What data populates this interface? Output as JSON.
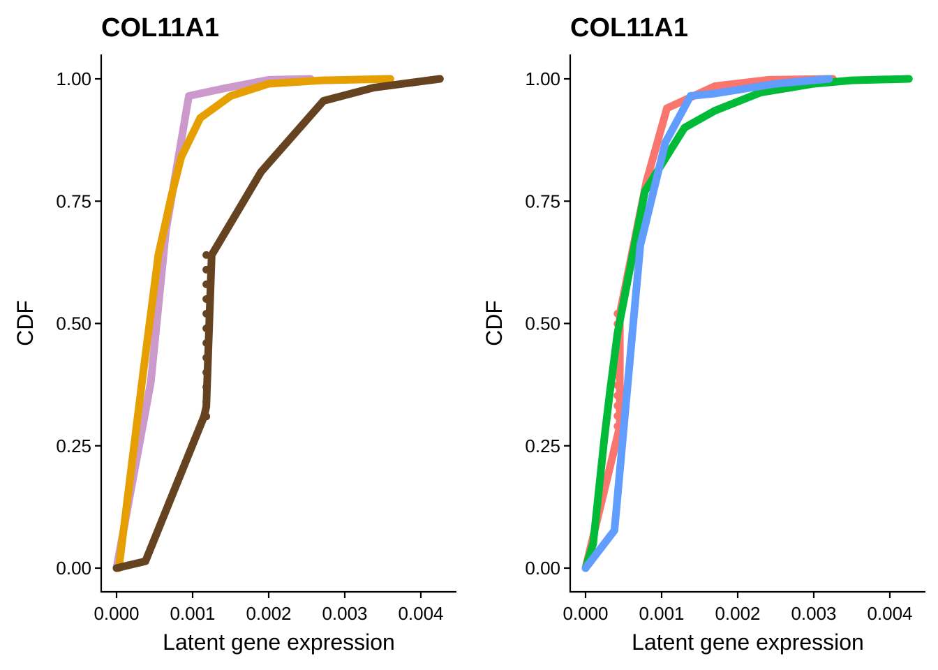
{
  "chart_data": [
    {
      "type": "line",
      "title": "COL11A1",
      "xlabel": "Latent gene expression",
      "ylabel": "CDF",
      "xlim": [
        0,
        0.0043
      ],
      "ylim": [
        0,
        1
      ],
      "xticks": [
        0,
        0.001,
        0.002,
        0.003,
        0.004
      ],
      "xtick_labels": [
        "0.000",
        "0.001",
        "0.002",
        "0.003",
        "0.004"
      ],
      "yticks": [
        0,
        0.25,
        0.5,
        0.75,
        1
      ],
      "ytick_labels": [
        "0.00",
        "0.25",
        "0.50",
        "0.75",
        "1.00"
      ],
      "grid": false,
      "legend": "none",
      "series": [
        {
          "name": "series-lilac",
          "color": "#cc99cc",
          "x": [
            0,
            0.00045,
            0.00065,
            0.00095,
            0.0014,
            0.002,
            0.00255
          ],
          "y": [
            0,
            0.38,
            0.69,
            0.965,
            0.98,
            0.998,
            1.0
          ]
        },
        {
          "name": "series-orange",
          "color": "#e69f00",
          "x": [
            3e-05,
            0.00035,
            0.00055,
            0.00072,
            0.00085,
            0.0011,
            0.0015,
            0.002,
            0.0027,
            0.0036
          ],
          "y": [
            0,
            0.4,
            0.64,
            0.76,
            0.84,
            0.92,
            0.965,
            0.99,
            0.997,
            1.0
          ]
        },
        {
          "name": "series-brown",
          "color": "#654321",
          "x": [
            0,
            0.00038,
            0.00115,
            0.00118,
            0.00125,
            0.0019,
            0.00272,
            0.00338,
            0.00425
          ],
          "y": [
            0,
            0.014,
            0.31,
            0.33,
            0.64,
            0.81,
            0.955,
            0.982,
            1.0
          ],
          "dotted_segment": {
            "x": 0.00118,
            "y_from": 0.31,
            "y_to": 0.64
          }
        }
      ]
    },
    {
      "type": "line",
      "title": "COL11A1",
      "xlabel": "Latent gene expression",
      "ylabel": "CDF",
      "xlim": [
        0,
        0.0043
      ],
      "ylim": [
        0,
        1
      ],
      "xticks": [
        0,
        0.001,
        0.002,
        0.003,
        0.004
      ],
      "xtick_labels": [
        "0.000",
        "0.001",
        "0.002",
        "0.003",
        "0.004"
      ],
      "yticks": [
        0,
        0.25,
        0.5,
        0.75,
        1
      ],
      "ytick_labels": [
        "0.00",
        "0.25",
        "0.50",
        "0.75",
        "1.00"
      ],
      "grid": false,
      "legend": "none",
      "series": [
        {
          "name": "series-red",
          "color": "#f8766d",
          "x": [
            0,
            0.00045,
            0.00045,
            0.0008,
            0.00107,
            0.0017,
            0.0024,
            0.00325
          ],
          "y": [
            0,
            0.29,
            0.52,
            0.79,
            0.94,
            0.985,
            0.998,
            1.0
          ],
          "dotted_segment": {
            "x": 0.00042,
            "y_from": 0.29,
            "y_to": 0.52
          }
        },
        {
          "name": "series-green",
          "color": "#00ba38",
          "x": [
            0,
            0.0001,
            0.00025,
            0.00032,
            0.00042,
            0.00078,
            0.0013,
            0.0017,
            0.0023,
            0.003,
            0.0035,
            0.00425
          ],
          "y": [
            0,
            0.05,
            0.27,
            0.36,
            0.48,
            0.77,
            0.9,
            0.935,
            0.972,
            0.99,
            0.997,
            1.0
          ]
        },
        {
          "name": "series-blue",
          "color": "#619cff",
          "x": [
            0,
            0.00038,
            0.00072,
            0.00105,
            0.00138,
            0.0017,
            0.0025,
            0.0032
          ],
          "y": [
            0,
            0.077,
            0.66,
            0.87,
            0.965,
            0.97,
            0.99,
            1.0
          ]
        }
      ]
    }
  ]
}
